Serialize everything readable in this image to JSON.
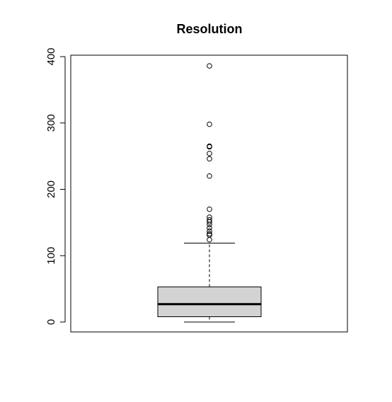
{
  "chart_data": {
    "type": "boxplot",
    "title": "Resolution",
    "xlabel": "",
    "ylabel": "",
    "ylim": [
      -15,
      415
    ],
    "y_ticks": [
      0,
      100,
      200,
      300,
      400
    ],
    "y_tick_labels": [
      "0",
      "100",
      "200",
      "300",
      "400"
    ],
    "grid": false,
    "box": {
      "fill": "#d3d3d3",
      "whisker_low": 0,
      "q1": 8,
      "median": 27,
      "q3": 53,
      "whisker_high": 119
    },
    "outliers": [
      386,
      298,
      265,
      264,
      254,
      246,
      220,
      170,
      158,
      154,
      151,
      147,
      142,
      137,
      133,
      131,
      124
    ]
  }
}
